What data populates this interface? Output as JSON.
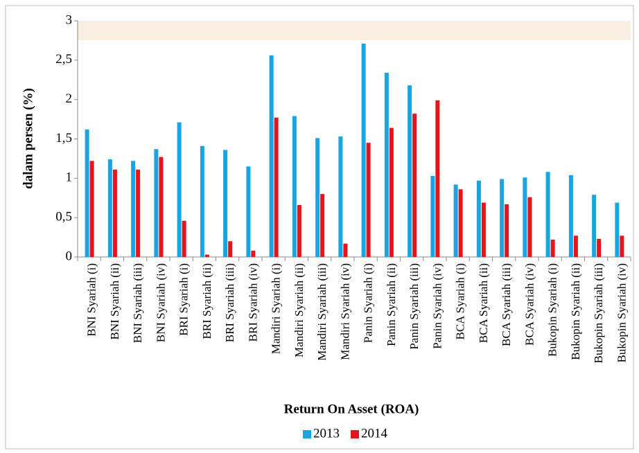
{
  "chart_data": {
    "type": "bar",
    "x_label": "Return On Asset (ROA)",
    "y_label": "dalam persen (%)",
    "categories": [
      "BNI Syariah (i)",
      "BNI Syariah (ii)",
      "BNI Syariah (iii)",
      "BNI Syariah (iv)",
      "BRI Syariah (i)",
      "BRI Syariah (ii)",
      "BRI Syariah (iii)",
      "BRI Syariah (iv)",
      "Mandiri Syariah (i)",
      "Mandiri Syariah (ii)",
      "Mandiri Syariah (iii)",
      "Mandiri Syariah (iv)",
      "Panin Syariah (i)",
      "Panin Syariah (ii)",
      "Panin Syariah (iii)",
      "Panin Syariah (iv)",
      "BCA Syariah (i)",
      "BCA Syariah (ii)",
      "BCA Syariah (iii)",
      "BCA Syariah (iv)",
      "Bukopin Syariah (i)",
      "Bukopin Syariah (ii)",
      "Bukopin Syariah (iii)",
      "Bukopin Syariah (iv)"
    ],
    "series": [
      {
        "name": "2013",
        "color": "#19a4e2",
        "values": [
          1.62,
          1.24,
          1.22,
          1.37,
          1.71,
          1.41,
          1.36,
          1.15,
          2.56,
          1.79,
          1.51,
          1.53,
          2.71,
          2.34,
          2.18,
          1.03,
          0.92,
          0.97,
          0.99,
          1.01,
          1.08,
          1.04,
          0.79,
          0.69
        ]
      },
      {
        "name": "2014",
        "color": "#e8141b",
        "values": [
          1.22,
          1.11,
          1.11,
          1.27,
          0.46,
          0.03,
          0.2,
          0.08,
          1.77,
          0.66,
          0.8,
          0.17,
          1.45,
          1.64,
          1.82,
          1.99,
          0.86,
          0.69,
          0.67,
          0.76,
          0.22,
          0.27,
          0.23,
          0.27
        ]
      }
    ],
    "ylim": [
      0,
      3
    ],
    "yticks": [
      0,
      {
        "value": 0.5,
        "label": "0,5"
      },
      1,
      {
        "value": 1.5,
        "label": "1,5"
      },
      2,
      {
        "value": 2.5,
        "label": "2,5"
      },
      3
    ],
    "legend": "bottom"
  }
}
